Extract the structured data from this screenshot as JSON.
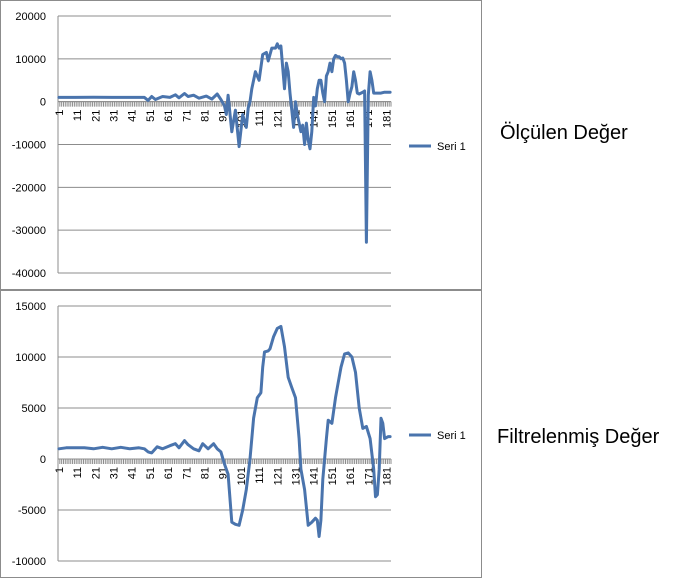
{
  "captions": [
    "Ölçülen Değer",
    "Filtrelenmiş Değer"
  ],
  "chart_data": [
    {
      "type": "line",
      "title": "",
      "xlabel": "",
      "ylabel": "",
      "ylim": [
        -40000,
        20000
      ],
      "yticks": [
        20000,
        10000,
        0,
        -10000,
        -20000,
        -30000,
        -40000
      ],
      "ytick_labels": [
        "20000",
        "10000",
        "0",
        "-10000",
        "-20000",
        "-30000",
        "-40000"
      ],
      "xtick_labels": [
        "1",
        "11",
        "21",
        "31",
        "41",
        "51",
        "61",
        "71",
        "81",
        "91",
        "101",
        "111",
        "121",
        "131",
        "141",
        "151",
        "161",
        "171",
        "181"
      ],
      "x_count": 183,
      "grid": "horizontal",
      "legend": "right",
      "color": "#4a74ad",
      "series": [
        {
          "name": "Seri 1",
          "points": [
            [
              1,
              1000
            ],
            [
              10,
              1000
            ],
            [
              20,
              1050
            ],
            [
              30,
              1000
            ],
            [
              40,
              1000
            ],
            [
              48,
              1000
            ],
            [
              50,
              300
            ],
            [
              52,
              1200
            ],
            [
              54,
              500
            ],
            [
              58,
              1200
            ],
            [
              62,
              1000
            ],
            [
              65,
              1600
            ],
            [
              67,
              900
            ],
            [
              70,
              1900
            ],
            [
              72,
              1200
            ],
            [
              75,
              1500
            ],
            [
              78,
              800
            ],
            [
              82,
              1300
            ],
            [
              85,
              600
            ],
            [
              88,
              1800
            ],
            [
              90,
              500
            ],
            [
              92,
              -1000
            ],
            [
              93,
              -3000
            ],
            [
              94,
              1500
            ],
            [
              96,
              -7000
            ],
            [
              98,
              -2000
            ],
            [
              100,
              -10500
            ],
            [
              102,
              -3000
            ],
            [
              104,
              -6000
            ],
            [
              105,
              -1500
            ],
            [
              106,
              0
            ],
            [
              107,
              3000
            ],
            [
              109,
              7000
            ],
            [
              111,
              5000
            ],
            [
              113,
              11000
            ],
            [
              115,
              11500
            ],
            [
              116,
              9500
            ],
            [
              118,
              12500
            ],
            [
              120,
              12500
            ],
            [
              121,
              13500
            ],
            [
              122,
              12500
            ],
            [
              123,
              13000
            ],
            [
              124,
              8000
            ],
            [
              125,
              3000
            ],
            [
              126,
              9000
            ],
            [
              127,
              7000
            ],
            [
              128,
              2000
            ],
            [
              129,
              -2000
            ],
            [
              130,
              -6000
            ],
            [
              131,
              0
            ],
            [
              132,
              -3000
            ],
            [
              133,
              -5000
            ],
            [
              134,
              -7000
            ],
            [
              135,
              -5500
            ],
            [
              136,
              -10000
            ],
            [
              137,
              -5000
            ],
            [
              138,
              -9000
            ],
            [
              139,
              -11000
            ],
            [
              140,
              -7000
            ],
            [
              141,
              1000
            ],
            [
              142,
              -1000
            ],
            [
              143,
              3000
            ],
            [
              144,
              5000
            ],
            [
              145,
              5000
            ],
            [
              146,
              2000
            ],
            [
              147,
              0
            ],
            [
              148,
              6000
            ],
            [
              149,
              7000
            ],
            [
              150,
              9000
            ],
            [
              151,
              7000
            ],
            [
              152,
              10000
            ],
            [
              153,
              10800
            ],
            [
              154,
              10500
            ],
            [
              155,
              10500
            ],
            [
              156,
              10000
            ],
            [
              157,
              10200
            ],
            [
              158,
              9000
            ],
            [
              159,
              5000
            ],
            [
              160,
              0
            ],
            [
              161,
              2000
            ],
            [
              162,
              3500
            ],
            [
              163,
              7000
            ],
            [
              164,
              5000
            ],
            [
              165,
              2000
            ],
            [
              166,
              1800
            ],
            [
              167,
              2000
            ],
            [
              168,
              2200
            ],
            [
              169,
              2500
            ],
            [
              170,
              -32800
            ],
            [
              171,
              1500
            ],
            [
              172,
              7000
            ],
            [
              173,
              5000
            ],
            [
              174,
              2000
            ],
            [
              175,
              2000
            ],
            [
              178,
              2000
            ],
            [
              180,
              2200
            ],
            [
              183,
              2200
            ]
          ]
        }
      ]
    },
    {
      "type": "line",
      "title": "",
      "xlabel": "",
      "ylabel": "",
      "ylim": [
        -10000,
        15000
      ],
      "yticks": [
        15000,
        10000,
        5000,
        0,
        -5000,
        -10000
      ],
      "ytick_labels": [
        "15000",
        "10000",
        "5000",
        "0",
        "-5000",
        "-10000"
      ],
      "xtick_labels": [
        "1",
        "11",
        "21",
        "31",
        "41",
        "51",
        "61",
        "71",
        "81",
        "91",
        "101",
        "111",
        "121",
        "131",
        "141",
        "151",
        "161",
        "171",
        "181"
      ],
      "x_count": 183,
      "grid": "horizontal",
      "legend": "right",
      "color": "#4a74ad",
      "series": [
        {
          "name": "Seri 1",
          "points": [
            [
              1,
              1000
            ],
            [
              5,
              1100
            ],
            [
              10,
              1100
            ],
            [
              15,
              1100
            ],
            [
              20,
              1000
            ],
            [
              25,
              1150
            ],
            [
              30,
              1000
            ],
            [
              35,
              1150
            ],
            [
              40,
              1000
            ],
            [
              45,
              1100
            ],
            [
              48,
              1000
            ],
            [
              50,
              700
            ],
            [
              52,
              600
            ],
            [
              55,
              1200
            ],
            [
              58,
              1000
            ],
            [
              62,
              1300
            ],
            [
              65,
              1500
            ],
            [
              67,
              1100
            ],
            [
              70,
              1800
            ],
            [
              72,
              1400
            ],
            [
              75,
              1000
            ],
            [
              78,
              800
            ],
            [
              80,
              1500
            ],
            [
              83,
              1000
            ],
            [
              86,
              1500
            ],
            [
              88,
              1000
            ],
            [
              90,
              700
            ],
            [
              92,
              -500
            ],
            [
              94,
              -1500
            ],
            [
              96,
              -6200
            ],
            [
              98,
              -6400
            ],
            [
              100,
              -6500
            ],
            [
              102,
              -5000
            ],
            [
              104,
              -3000
            ],
            [
              106,
              0
            ],
            [
              108,
              4000
            ],
            [
              110,
              6000
            ],
            [
              112,
              6500
            ],
            [
              113,
              9000
            ],
            [
              114,
              10500
            ],
            [
              116,
              10600
            ],
            [
              117,
              10800
            ],
            [
              119,
              12000
            ],
            [
              121,
              12800
            ],
            [
              123,
              13000
            ],
            [
              125,
              11000
            ],
            [
              127,
              8000
            ],
            [
              129,
              7000
            ],
            [
              131,
              6000
            ],
            [
              133,
              2000
            ],
            [
              134,
              -1000
            ],
            [
              136,
              -3000
            ],
            [
              138,
              -6500
            ],
            [
              140,
              -6200
            ],
            [
              142,
              -5800
            ],
            [
              143,
              -6000
            ],
            [
              144,
              -7600
            ],
            [
              145,
              -6000
            ],
            [
              146,
              -2000
            ],
            [
              148,
              2000
            ],
            [
              149,
              3800
            ],
            [
              151,
              3500
            ],
            [
              153,
              6000
            ],
            [
              154,
              7000
            ],
            [
              156,
              9000
            ],
            [
              158,
              10300
            ],
            [
              160,
              10400
            ],
            [
              162,
              10000
            ],
            [
              164,
              8500
            ],
            [
              166,
              5000
            ],
            [
              168,
              3000
            ],
            [
              170,
              3200
            ],
            [
              172,
              2000
            ],
            [
              174,
              -1000
            ],
            [
              175,
              -3700
            ],
            [
              176,
              -3500
            ],
            [
              177,
              -1000
            ],
            [
              178,
              4000
            ],
            [
              179,
              3500
            ],
            [
              180,
              2000
            ],
            [
              182,
              2200
            ],
            [
              183,
              2200
            ]
          ]
        }
      ]
    }
  ]
}
